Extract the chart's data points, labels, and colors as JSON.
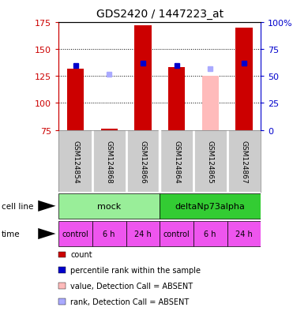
{
  "title": "GDS2420 / 1447223_at",
  "samples": [
    "GSM124854",
    "GSM124868",
    "GSM124866",
    "GSM124864",
    "GSM124865",
    "GSM124867"
  ],
  "bar_values": [
    132,
    76,
    172,
    133,
    125,
    170
  ],
  "bar_colors": [
    "#cc0000",
    "#cc0000",
    "#cc0000",
    "#cc0000",
    "#ffbbbb",
    "#cc0000"
  ],
  "rank_values": [
    135,
    127,
    137,
    135,
    132,
    137
  ],
  "rank_colors": [
    "#0000cc",
    "#aaaaff",
    "#0000cc",
    "#0000cc",
    "#aaaaff",
    "#0000cc"
  ],
  "ymin": 75,
  "ymax": 175,
  "yticks_left": [
    75,
    100,
    125,
    150,
    175
  ],
  "yticks_right_labels": [
    "0",
    "25",
    "50",
    "75",
    "100%"
  ],
  "yticks_right_vals": [
    75,
    100,
    125,
    150,
    175
  ],
  "cell_line_labels": [
    "mock",
    "deltaNp73alpha"
  ],
  "cell_line_spans": [
    [
      0,
      3
    ],
    [
      3,
      6
    ]
  ],
  "cell_line_colors": [
    "#99ee99",
    "#33cc33"
  ],
  "time_labels": [
    "control",
    "6 h",
    "24 h",
    "control",
    "6 h",
    "24 h"
  ],
  "time_bg_color": "#ee55ee",
  "gsm_bg_color": "#cccccc",
  "legend_items": [
    {
      "color": "#cc0000",
      "label": "count"
    },
    {
      "color": "#0000cc",
      "label": "percentile rank within the sample"
    },
    {
      "color": "#ffbbbb",
      "label": "value, Detection Call = ABSENT"
    },
    {
      "color": "#aaaaff",
      "label": "rank, Detection Call = ABSENT"
    }
  ],
  "left_axis_color": "#cc0000",
  "right_axis_color": "#0000cc",
  "bar_width": 0.5,
  "grid_lines": [
    100,
    125,
    150
  ]
}
